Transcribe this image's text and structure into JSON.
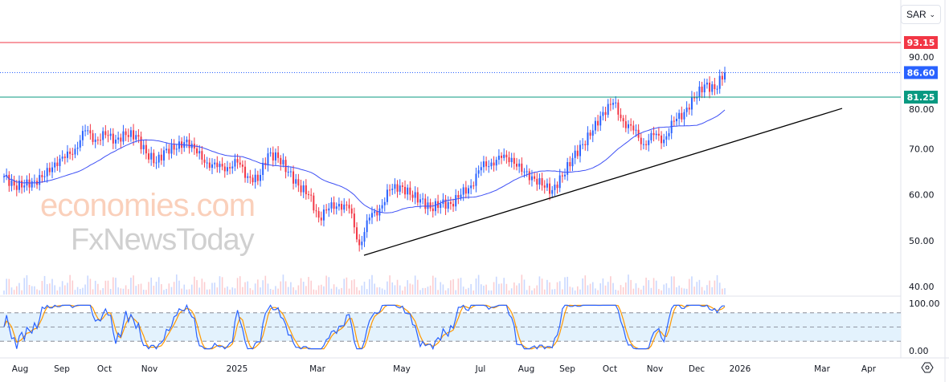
{
  "currency_selector": {
    "value": "SAR",
    "icon": "chevron-down-icon"
  },
  "watermark": {
    "line1": "economies.com",
    "line2": "FxNewsToday"
  },
  "chart_data": {
    "type": "candlestick",
    "title": "",
    "price_axis": {
      "ticks": [
        "90.00",
        "80.00",
        "70.00",
        "60.00",
        "50.00",
        "40.00"
      ],
      "range": [
        40,
        93.5
      ]
    },
    "time_axis": {
      "ticks": [
        "Aug",
        "Sep",
        "Oct",
        "Nov",
        "2025",
        "Mar",
        "May",
        "Jul",
        "Aug",
        "Sep",
        "Oct",
        "Nov",
        "Dec",
        "2026",
        "Mar",
        "Apr"
      ]
    },
    "closes": [
      64,
      62,
      62,
      63,
      64,
      67,
      68,
      70,
      74,
      72,
      73,
      72,
      73,
      73,
      69,
      67,
      70,
      70,
      72,
      69,
      67,
      66,
      66,
      67,
      64,
      63,
      69,
      68,
      65,
      62,
      60,
      55,
      57,
      58,
      57,
      49,
      55,
      57,
      61,
      62,
      60,
      59,
      57,
      58,
      58,
      60,
      62,
      66,
      67,
      68,
      68,
      65,
      64,
      62,
      61,
      64,
      68,
      71,
      74,
      78,
      80,
      76,
      74,
      71,
      73,
      72,
      76,
      78,
      81,
      84,
      83,
      86.6
    ],
    "moving_average_period": 8,
    "levels": [
      {
        "label": "93.15",
        "value": 93.15,
        "color": "#f23645",
        "style": "solid"
      },
      {
        "label": "86.60",
        "value": 86.6,
        "color": "#2962ff",
        "style": "dotted"
      },
      {
        "label": "81.25",
        "value": 81.25,
        "color": "#089981",
        "style": "solid"
      }
    ],
    "trendline": {
      "start_price": 46.8,
      "end_price": 78.8,
      "start": "Apr 2025",
      "end": "Mar 2026",
      "color": "#000000"
    },
    "stochastic": {
      "ticks": [
        "100.00",
        "0.00"
      ],
      "upper_band": 80,
      "lower_band": 20,
      "mid": 50
    },
    "colors": {
      "up": "#2962ff",
      "down": "#f23645",
      "ma": "#3f51f5",
      "stoch_k": "#2962ff",
      "stoch_d": "#ff9800",
      "band_fill": "#e3f2fd"
    }
  }
}
